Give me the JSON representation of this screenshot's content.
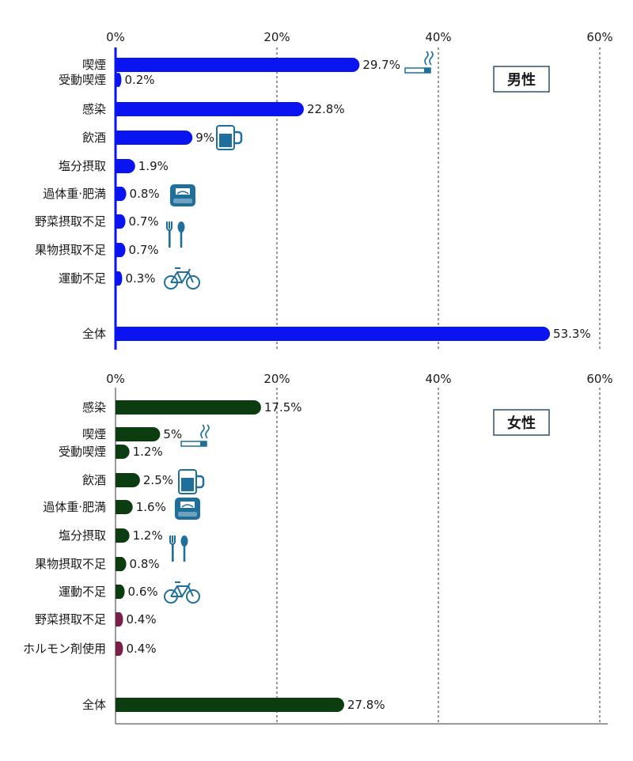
{
  "chart_data": [
    {
      "type": "bar",
      "orientation": "horizontal",
      "panel_label": "男性",
      "xlim": [
        0,
        60
      ],
      "x_ticks": [
        "0%",
        "20%",
        "40%",
        "60%"
      ],
      "grid": "dotted vertical at 20%, 40%, 60%",
      "bar_color": "#0a14f0",
      "categories": [
        "喫煙",
        "受動喫煙",
        "感染",
        "飲酒",
        "塩分摂取",
        "過体重·肥満",
        "野菜摂取不足",
        "果物摂取不足",
        "運動不足",
        "全体"
      ],
      "values": [
        29.7,
        0.2,
        22.8,
        9,
        1.9,
        0.8,
        0.7,
        0.7,
        0.3,
        53.3
      ],
      "labels": [
        "29.7%",
        "0.2%",
        "22.8%",
        "9%",
        "1.9%",
        "0.8%",
        "0.7%",
        "0.7%",
        "0.3%",
        "53.3%"
      ],
      "icons": [
        "cigarette-icon",
        "beer-mug-icon",
        "scale-icon",
        "cutlery-icon",
        "bicycle-icon"
      ]
    },
    {
      "type": "bar",
      "orientation": "horizontal",
      "panel_label": "女性",
      "xlim": [
        0,
        60
      ],
      "x_ticks": [
        "0%",
        "20%",
        "40%",
        "60%"
      ],
      "grid": "dotted vertical at 20%, 40%, 60%",
      "bar_color": "#0b3d10",
      "categories": [
        "感染",
        "喫煙",
        "受動喫煙",
        "飲酒",
        "過体重·肥満",
        "塩分摂取",
        "果物摂取不足",
        "運動不足",
        "野菜摂取不足",
        "ホルモン剤使用",
        "全体"
      ],
      "values": [
        17.5,
        5,
        1.2,
        2.5,
        1.6,
        1.2,
        0.8,
        0.6,
        0.4,
        0.4,
        27.8
      ],
      "labels": [
        "17.5%",
        "5%",
        "1.2%",
        "2.5%",
        "1.6%",
        "1.2%",
        "0.8%",
        "0.6%",
        "0.4%",
        "0.4%",
        "27.8%"
      ],
      "icons": [
        "cigarette-icon",
        "beer-mug-icon",
        "scale-icon",
        "cutlery-icon",
        "bicycle-icon"
      ]
    }
  ],
  "colors": {
    "male_bar": "#0a14f0",
    "female_bar": "#0b3d10",
    "female_tiny_bar": "#7a1f4a",
    "icon_blue": "#1f6f9c"
  }
}
